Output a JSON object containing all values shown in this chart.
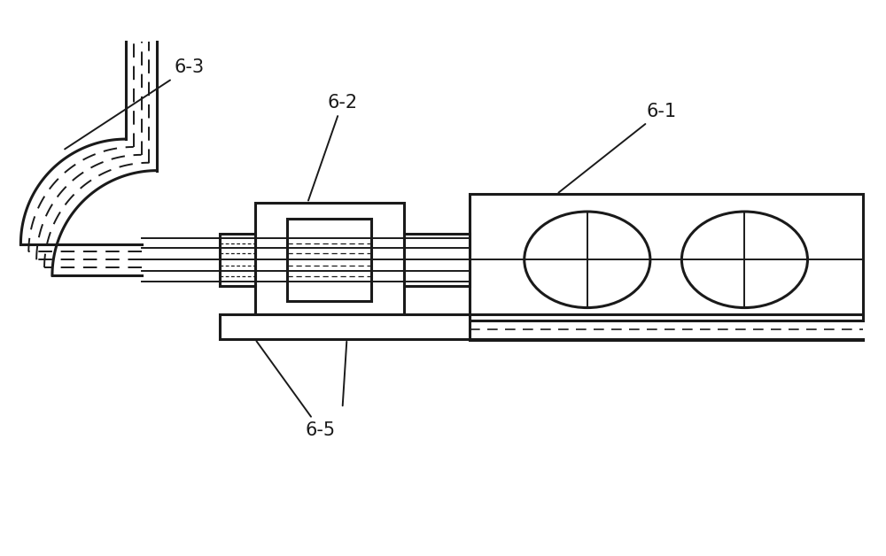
{
  "bg_color": "#ffffff",
  "line_color": "#1a1a1a",
  "lw": 2.2,
  "lw_thin": 1.4,
  "lw_dash": 1.2,
  "label_62": "6-2",
  "label_61": "6-1",
  "label_63": "6-3",
  "label_65": "6-5",
  "fig_width": 10.0,
  "fig_height": 6.28
}
